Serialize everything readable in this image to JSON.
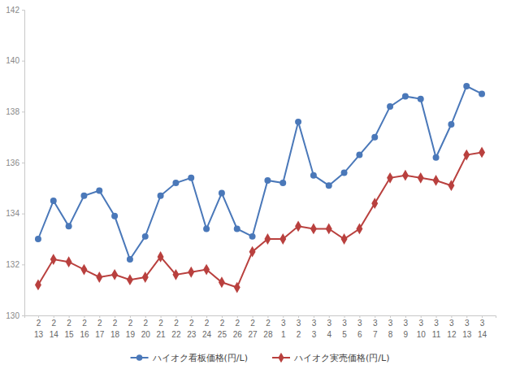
{
  "chart_data": {
    "type": "line",
    "categories": [
      "2\n13",
      "2\n14",
      "2\n15",
      "2\n16",
      "2\n17",
      "2\n18",
      "2\n19",
      "2\n20",
      "2\n21",
      "2\n22",
      "2\n23",
      "2\n24",
      "2\n25",
      "2\n26",
      "2\n27",
      "2\n28",
      "3\n1",
      "3\n2",
      "3\n3",
      "3\n4",
      "3\n5",
      "3\n6",
      "3\n7",
      "3\n8",
      "3\n9",
      "3\n10",
      "3\n11",
      "3\n12",
      "3\n13",
      "3\n14"
    ],
    "series": [
      {
        "name": "ハイオク看板価格(円/L)",
        "color": "#4a78b9",
        "marker": "circle",
        "values": [
          133.0,
          134.5,
          133.5,
          134.7,
          134.9,
          133.9,
          132.2,
          133.1,
          134.7,
          135.2,
          135.4,
          133.4,
          134.8,
          133.4,
          133.1,
          135.3,
          135.2,
          137.6,
          135.5,
          135.1,
          135.6,
          136.3,
          137.0,
          138.2,
          138.6,
          138.5,
          136.2,
          137.5,
          139.0,
          138.7
        ]
      },
      {
        "name": "ハイオク実売価格(円/L)",
        "color": "#b9403e",
        "marker": "diamond",
        "values": [
          131.2,
          132.2,
          132.1,
          131.8,
          131.5,
          131.6,
          131.4,
          131.5,
          132.3,
          131.6,
          131.7,
          131.8,
          131.3,
          131.1,
          132.5,
          133.0,
          133.0,
          133.5,
          133.4,
          133.4,
          133.0,
          133.4,
          134.4,
          135.4,
          135.5,
          135.4,
          135.3,
          135.1,
          136.3,
          136.4
        ]
      }
    ],
    "ylim": [
      130,
      142
    ],
    "yticks": [
      130,
      132,
      134,
      136,
      138,
      140,
      142
    ],
    "grid": false,
    "legend": "bottom"
  }
}
